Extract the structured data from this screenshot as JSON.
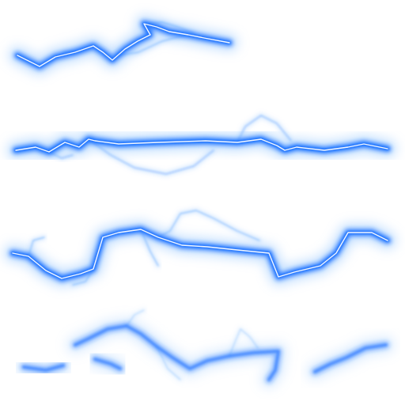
{
  "sprite_sheet": {
    "background": "#ffffff",
    "glow_color": "#1e73ff",
    "halo_color": "#8fc4ff",
    "core_color": "#ffffff",
    "bolt_count": 4,
    "bolts": [
      {
        "name": "bolt-frame-1",
        "intensity": 0.95
      },
      {
        "name": "bolt-frame-2",
        "intensity": 1.0
      },
      {
        "name": "bolt-frame-3",
        "intensity": 0.95
      },
      {
        "name": "bolt-frame-4",
        "intensity": 0.55
      }
    ]
  }
}
